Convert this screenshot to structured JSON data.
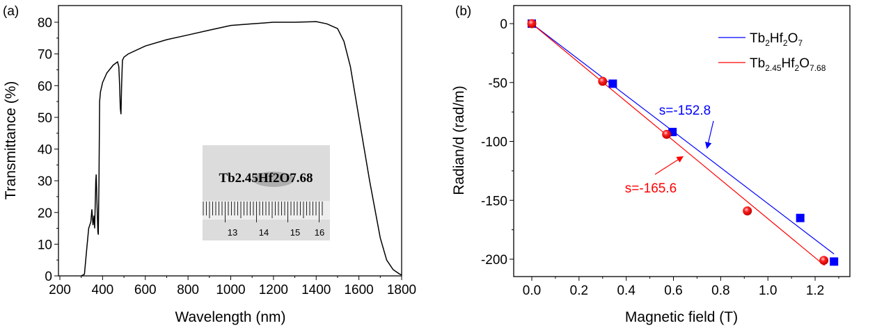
{
  "chart_data": [
    {
      "type": "line",
      "panel_label": "(a)",
      "xlabel": "Wavelength (nm)",
      "ylabel": "Transmittance (%)",
      "xlim": [
        200,
        1800
      ],
      "ylim": [
        0,
        85
      ],
      "xticks": [
        200,
        400,
        600,
        800,
        1000,
        1200,
        1400,
        1600,
        1800
      ],
      "yticks": [
        0,
        10,
        20,
        30,
        40,
        50,
        60,
        70,
        80
      ],
      "grid": false,
      "series": [
        {
          "color": "#000000",
          "x": [
            300,
            315,
            325,
            335,
            345,
            350,
            355,
            360,
            363,
            368,
            370,
            373,
            378,
            380,
            383,
            386,
            390,
            400,
            420,
            450,
            470,
            476,
            480,
            483,
            486,
            489,
            493,
            500,
            520,
            600,
            700,
            800,
            900,
            1000,
            1100,
            1200,
            1300,
            1400,
            1450,
            1500,
            1530,
            1560,
            1600,
            1650,
            1700,
            1730,
            1760,
            1790,
            1800
          ],
          "y": [
            0,
            0.5,
            8,
            15,
            17,
            21,
            16,
            19,
            15,
            30,
            32,
            25,
            14,
            13,
            30,
            55,
            58,
            61,
            64,
            66.5,
            67.5,
            66,
            60,
            53,
            51,
            60,
            68,
            69,
            70,
            72.5,
            74.5,
            76,
            77.5,
            79,
            79.5,
            80,
            80,
            80.2,
            79.5,
            78,
            74,
            66,
            50,
            30,
            12,
            5,
            2,
            0.6,
            0.3
          ]
        }
      ],
      "inset": {
        "label": "Tb2.45Hf2O7.68",
        "ruler_labels": [
          "13",
          "14",
          "15",
          "16"
        ]
      }
    },
    {
      "type": "scatter",
      "panel_label": "(b)",
      "xlabel": "Magnetic field (T)",
      "ylabel": "Radian/d (rad/m)",
      "xlim": [
        -0.08,
        1.32
      ],
      "ylim": [
        -220,
        15
      ],
      "xticks": [
        0.0,
        0.2,
        0.4,
        0.6,
        0.8,
        1.0,
        1.2
      ],
      "yticks": [
        0,
        -50,
        -100,
        -150,
        -200
      ],
      "grid": false,
      "legend_position": "top-right",
      "series": [
        {
          "name": "Tb2Hf2O7",
          "color": "#0000ff",
          "marker": "square",
          "x": [
            0,
            0.343,
            0.596,
            1.137,
            1.28
          ],
          "y": [
            0,
            -51,
            -92,
            -165,
            -202
          ],
          "fit_slope": -152.8,
          "fit_x": [
            0,
            1.28
          ],
          "annotation": "s=-152.8"
        },
        {
          "name": "Tb2.45Hf2O7.68",
          "color": "#ff0000",
          "marker": "sphere",
          "x": [
            0,
            0.3,
            0.571,
            0.913,
            1.237
          ],
          "y": [
            0,
            -49,
            -94,
            -159,
            -201
          ],
          "fit_slope": -165.6,
          "fit_x": [
            0,
            1.24
          ],
          "annotation": "s=-165.6"
        }
      ]
    }
  ]
}
